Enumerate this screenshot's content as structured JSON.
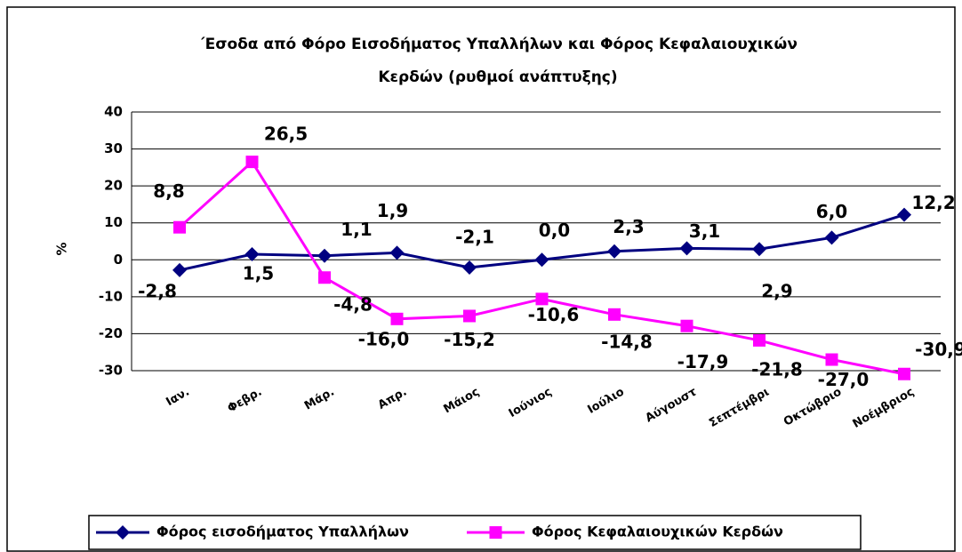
{
  "chart_data": {
    "type": "line",
    "title": [
      "΄Εσοδα από Φόρο Εισοδήματος Υπαλλήλων και  Φόρος Κεφαλαιουχικών",
      "Κερδών (ρυθμοί ανάπτυξης)"
    ],
    "y_label": "%",
    "categories": [
      "Ιαν.",
      "Φεβρ.",
      "Μάρ.",
      "Απρ.",
      "Μάιος",
      "Ιούνιος",
      "Ιούλιο",
      "Αύγουστ",
      "Σεπτέμβρι",
      "Οκτώβριο",
      "Νοέμβριος"
    ],
    "series": [
      {
        "name": "Φόρος εισοδήματος Υπαλλήλων",
        "color": "#000080",
        "marker": "diamond",
        "values": [
          -2.8,
          1.5,
          1.1,
          1.9,
          -2.1,
          0.0,
          2.3,
          3.1,
          2.9,
          6.0,
          12.2
        ],
        "value_labels": [
          "-2,8",
          "1,5",
          "1,1",
          "1,9",
          "-2,1",
          "0,0",
          "2,3",
          "3,1",
          "2,9",
          "6,0",
          "12,2"
        ]
      },
      {
        "name": "Φόρος Κεφαλαιουχικών Κερδών",
        "color": "#ff00ff",
        "marker": "square",
        "values": [
          8.8,
          26.5,
          -4.8,
          -16.0,
          -15.2,
          -10.6,
          -14.8,
          -17.9,
          -21.8,
          -27.0,
          -30.9
        ],
        "value_labels": [
          "8,8",
          "26,5",
          "-4,8",
          "-16,0",
          "-15,2",
          "-10,6",
          "-14,8",
          "-17,9",
          "-21,8",
          "-27,0",
          "-30,9"
        ]
      }
    ],
    "ylim": [
      -30,
      40
    ],
    "yticks": [
      -30,
      -20,
      -10,
      0,
      10,
      20,
      30,
      40
    ],
    "grid": true,
    "legend": "bottom"
  }
}
